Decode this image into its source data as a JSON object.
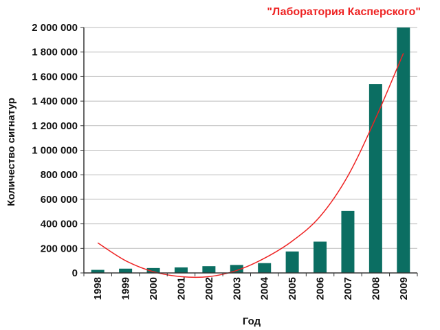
{
  "chart_data": {
    "type": "bar",
    "title": "\"Лаборатория Касперского\"",
    "xlabel": "Год",
    "ylabel": "Количество сигнатур",
    "categories": [
      "1998",
      "1999",
      "2000",
      "2001",
      "2002",
      "2003",
      "2004",
      "2005",
      "2006",
      "2007",
      "2008",
      "2009"
    ],
    "series": [
      {
        "values": [
          25000,
          35000,
          40000,
          45000,
          55000,
          65000,
          80000,
          175000,
          255000,
          505000,
          1540000,
          2000000
        ]
      }
    ],
    "trendline": {
      "type": "polynomial",
      "degree": 2,
      "values": [
        245000,
        100000,
        10000,
        -30000,
        -30000,
        20000,
        120000,
        260000,
        460000,
        790000,
        1260000,
        1790000
      ]
    },
    "ylim": [
      0,
      2000000
    ],
    "yticks": [
      "0",
      "200 000",
      "400 000",
      "600 000",
      "800 000",
      "1 000 000",
      "1 200 000",
      "1 400 000",
      "1 600 000",
      "1 800 000",
      "2 000 000"
    ],
    "ytick_values": [
      0,
      200000,
      400000,
      600000,
      800000,
      1000000,
      1200000,
      1400000,
      1600000,
      1800000,
      2000000
    ],
    "grid": "horizontal",
    "legend": "none",
    "colors": {
      "bar": "#0b6e62",
      "trendline": "#ee2222",
      "title": "#ee2222"
    }
  }
}
